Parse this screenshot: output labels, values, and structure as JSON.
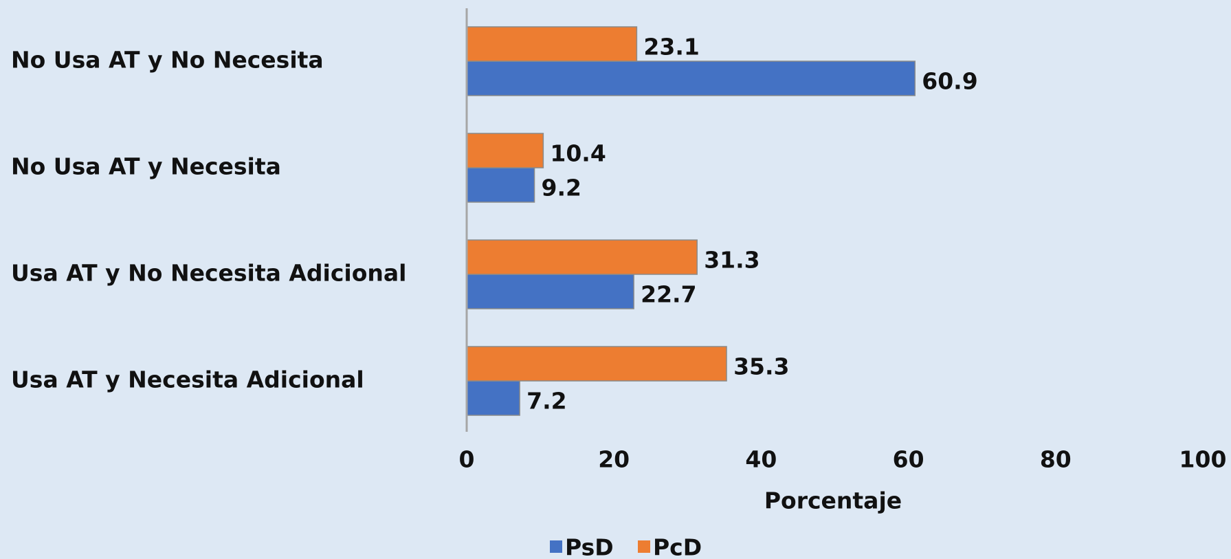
{
  "chart_data": {
    "type": "barh",
    "categories": [
      "No Usa AT y No Necesita",
      "No Usa AT y Necesita",
      "Usa AT y No Necesita Adicional",
      "Usa AT y Necesita Adicional"
    ],
    "series": [
      {
        "name": "PsD",
        "color": "#4472c4",
        "values": [
          60.9,
          9.2,
          22.7,
          7.2
        ]
      },
      {
        "name": "PcD",
        "color": "#ed7d31",
        "values": [
          23.1,
          10.4,
          31.3,
          35.3
        ]
      }
    ],
    "xlabel": "Porcentaje",
    "xlim": [
      0,
      100
    ],
    "xticks": [
      0,
      20,
      40,
      60,
      80,
      100
    ],
    "grid": false,
    "legend": "bottom"
  }
}
